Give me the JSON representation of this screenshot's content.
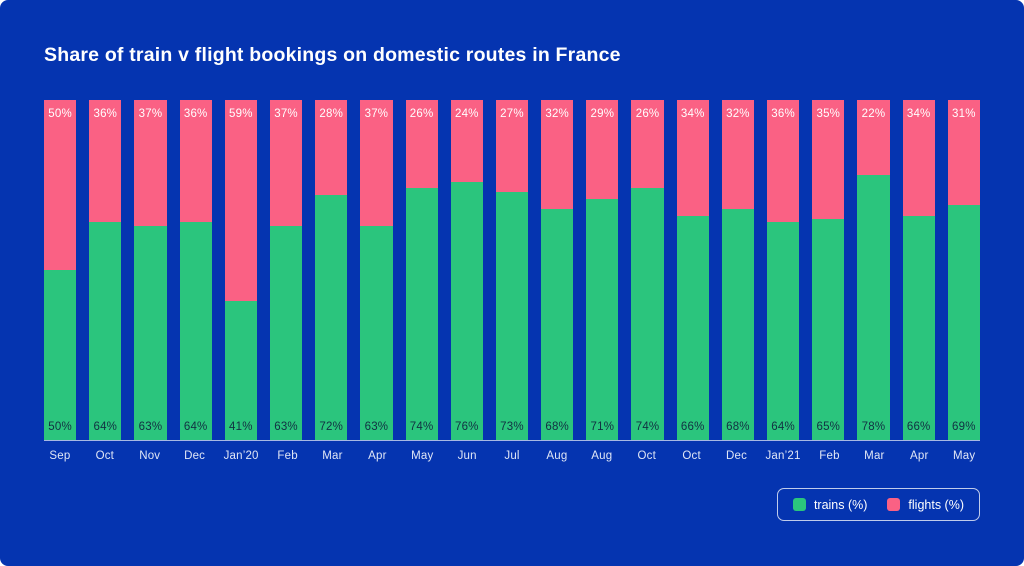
{
  "title": "Share of train v flight bookings on domestic routes in France",
  "colors": {
    "background": "#0534b0",
    "trains": "#2bc57d",
    "flights": "#fa6184",
    "flights_value_label": "#ffffff",
    "trains_value_label": "#123042",
    "axis_line": "#ffffff",
    "title_text": "#ffffff"
  },
  "chart_data": {
    "type": "bar",
    "stacked": true,
    "orientation": "vertical",
    "title": "Share of train v flight bookings on domestic routes in France",
    "xlabel": "",
    "ylabel": "",
    "ylim": [
      0,
      100
    ],
    "grid": false,
    "legend_position": "bottom-right",
    "categories": [
      "Sep",
      "Oct",
      "Nov",
      "Dec",
      "Jan’20",
      "Feb",
      "Mar",
      "Apr",
      "May",
      "Jun",
      "Jul",
      "Aug",
      "Aug",
      "Oct",
      "Oct",
      "Dec",
      "Jan’21",
      "Feb",
      "Mar",
      "Apr",
      "May"
    ],
    "series": [
      {
        "name": "trains (%)",
        "color": "#2bc57d",
        "values": [
          50,
          64,
          63,
          64,
          41,
          63,
          72,
          63,
          74,
          76,
          73,
          68,
          71,
          74,
          66,
          68,
          64,
          65,
          78,
          66,
          69
        ]
      },
      {
        "name": "flights (%)",
        "color": "#fa6184",
        "values": [
          50,
          36,
          37,
          36,
          59,
          37,
          28,
          37,
          26,
          24,
          27,
          32,
          29,
          26,
          34,
          32,
          36,
          35,
          22,
          34,
          31
        ]
      }
    ]
  },
  "legend": {
    "items": [
      {
        "label": "trains (%)",
        "color": "#2bc57d"
      },
      {
        "label": "flights (%)",
        "color": "#fa6184"
      }
    ]
  }
}
